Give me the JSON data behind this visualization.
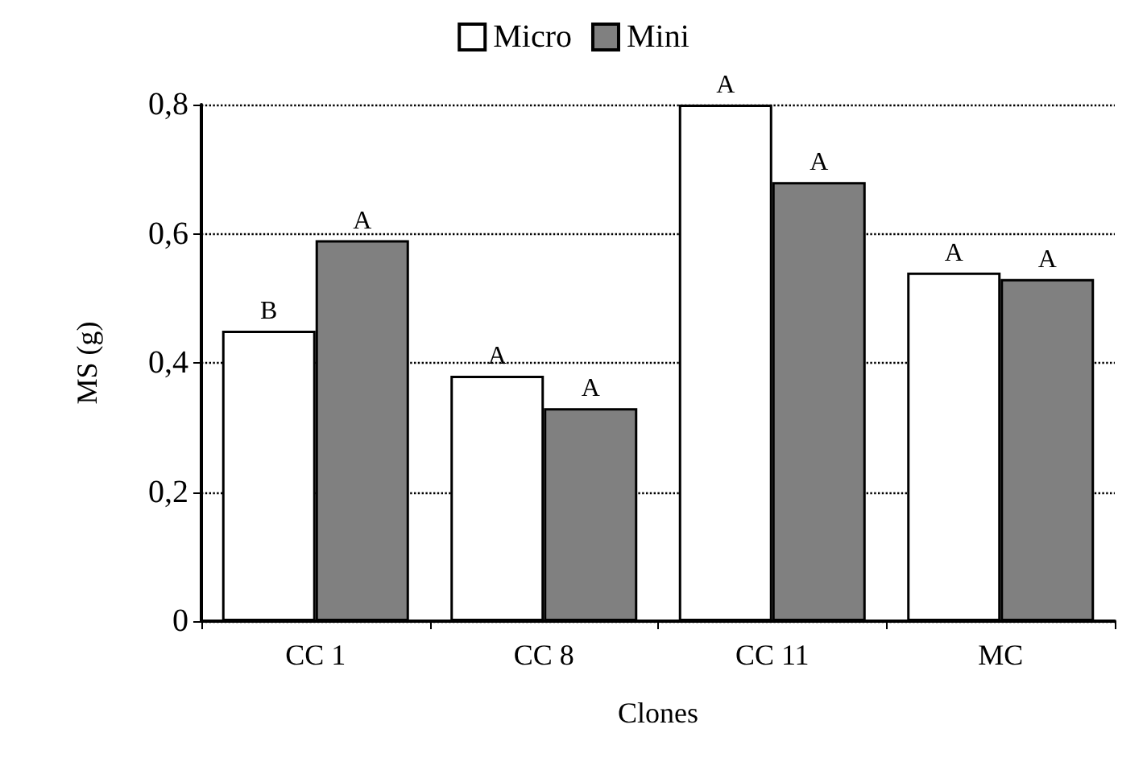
{
  "chart_data": {
    "type": "bar",
    "xlabel": "Clones",
    "ylabel": "MS (g)",
    "categories": [
      "CC 1",
      "CC 8",
      "CC 11",
      "MC"
    ],
    "series": [
      {
        "name": "Micro",
        "color": "#ffffff",
        "values": [
          0.45,
          0.38,
          0.8,
          0.54
        ],
        "value_labels": [
          "B",
          "A",
          "A",
          "A"
        ]
      },
      {
        "name": "Mini",
        "color": "#808080",
        "values": [
          0.59,
          0.33,
          0.68,
          0.53
        ],
        "value_labels": [
          "A",
          "A",
          "A",
          "A"
        ]
      }
    ],
    "ylim": [
      0,
      0.8
    ],
    "yticks": [
      0,
      {
        "value": 0.2,
        "label": "0,2"
      },
      {
        "value": 0.4,
        "label": "0,4"
      },
      {
        "value": 0.6,
        "label": "0,6"
      },
      {
        "value": 0.8,
        "label": "0,8"
      }
    ],
    "grid": "y",
    "line_style": "dotted",
    "legend": "top"
  }
}
